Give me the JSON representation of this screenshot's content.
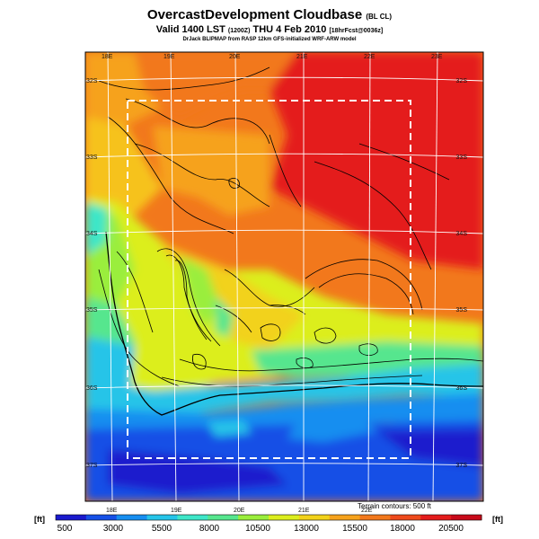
{
  "header": {
    "title": "OvercastDevelopment Cloudbase",
    "title_suffix": "(BL CL)",
    "valid": "Valid 1400 LST",
    "valid_code": "(1200Z)",
    "valid_date": "THU 4 Feb 2010",
    "valid_suffix": "[18hrFcst@0036z]",
    "source": "DrJack BLIPMAP from RASP 12km GFS-initialized WRF-ARW model"
  },
  "map": {
    "lon_labels_top": [
      "18E",
      "19E",
      "20E",
      "21E",
      "22E",
      "23E"
    ],
    "lon_labels_bottom": [
      "18E",
      "19E",
      "20E",
      "21E",
      "22E"
    ],
    "lat_labels": [
      "32S",
      "33S",
      "34S",
      "35S",
      "36S",
      "37S"
    ],
    "terrain_note": "Terrain contours: 500 ft",
    "subdomain_box": "dashed white",
    "contour_color": "#000000",
    "grid_color": "#ffffff"
  },
  "colorbar": {
    "unit_left": "[ft]",
    "unit_right": "[ft]",
    "ticks": [
      "500",
      "3000",
      "5500",
      "8000",
      "10500",
      "13000",
      "15500",
      "18000",
      "20500"
    ],
    "colors": [
      "#1a1acd",
      "#1650e6",
      "#178ef0",
      "#26c4e8",
      "#3ee6c8",
      "#56e68e",
      "#9aee3c",
      "#dcee1e",
      "#f2d21a",
      "#f6a21c",
      "#f2781c",
      "#ee4a1c",
      "#e41c1c",
      "#c80a1a"
    ]
  }
}
